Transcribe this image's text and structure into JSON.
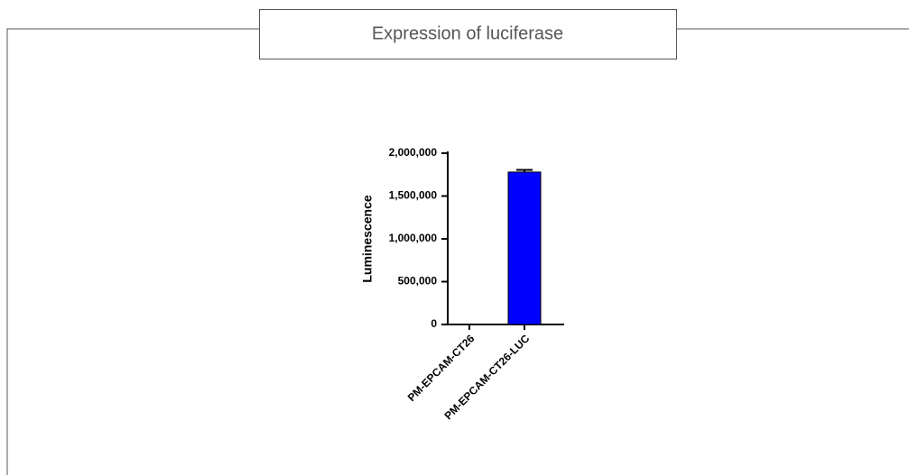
{
  "panel_title": "Expression of luciferase",
  "chart_data": {
    "type": "bar",
    "y_label": "Luminescence",
    "categories": [
      "PM-EPCAM-CT26",
      "PM-EPCAM-CT26-LUC"
    ],
    "values": [
      5000,
      1780000
    ],
    "errors": [
      0,
      25000
    ],
    "color": "#0000ff",
    "ylim": [
      0,
      2000000
    ],
    "yticks": [
      0,
      {
        "value": 500000,
        "label": "500,000"
      },
      {
        "value": 1000000,
        "label": "1,000,000"
      },
      {
        "value": 1500000,
        "label": "1,500,000"
      },
      {
        "value": 2000000,
        "label": "2,000,000"
      }
    ],
    "grid": false
  }
}
